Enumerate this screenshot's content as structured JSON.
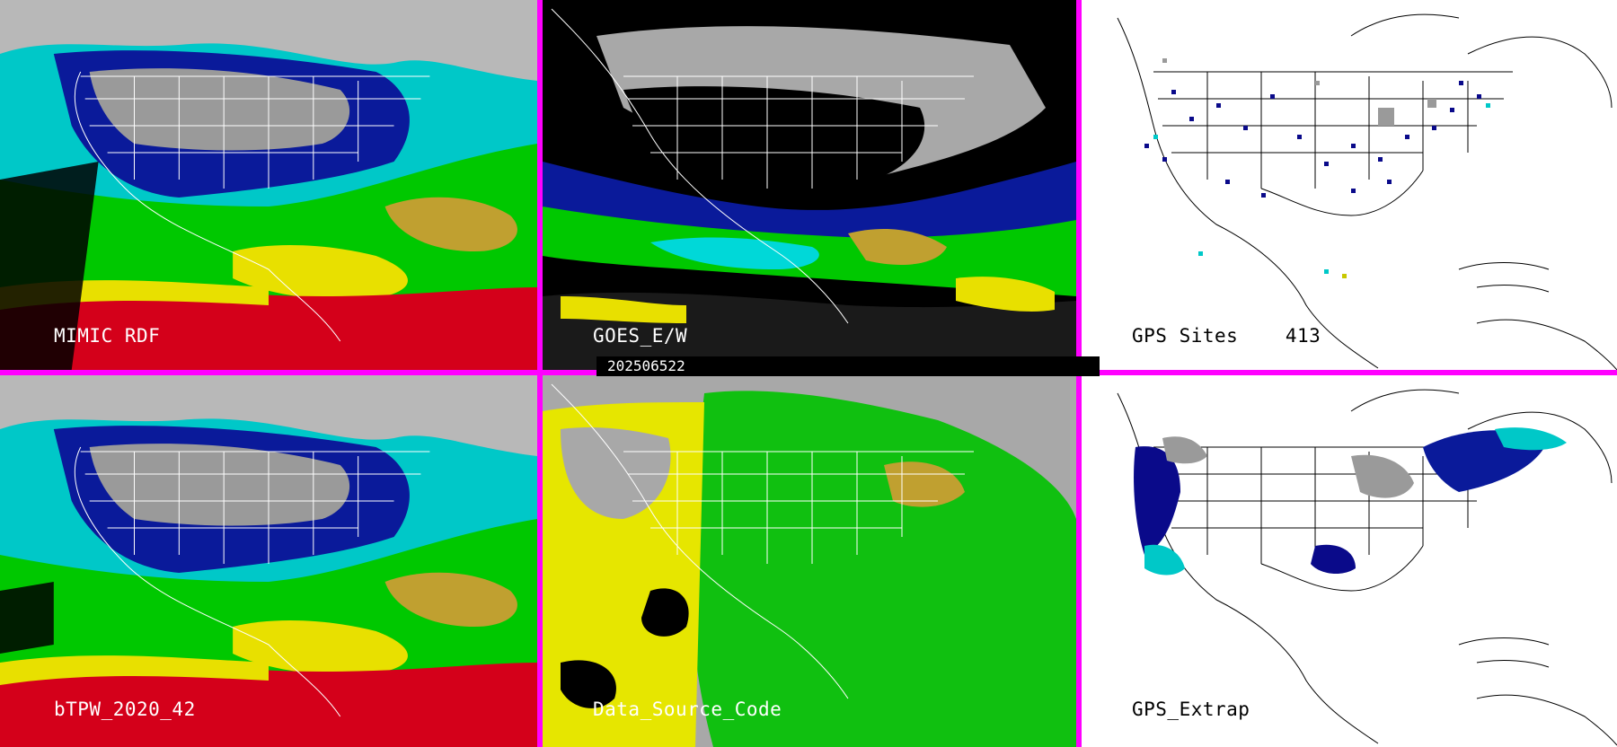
{
  "panels": [
    {
      "id": "p1",
      "label": "MIMIC RDF",
      "style": "tpw"
    },
    {
      "id": "p2",
      "label": "GOES_E/W",
      "style": "goes"
    },
    {
      "id": "p3",
      "label": "GPS Sites    413",
      "style": "gps"
    },
    {
      "id": "p4",
      "label": "bTPW_2020_42",
      "style": "tpw"
    },
    {
      "id": "p5",
      "label": "Data_Source_Code",
      "style": "source"
    },
    {
      "id": "p6",
      "label": "GPS_Extrap",
      "style": "extrap"
    }
  ],
  "timestamp": "202506522",
  "colors": {
    "separator": "#ff00ff",
    "tpw_red": "#d4001a",
    "tpw_yellow": "#e8e000",
    "tpw_green": "#00c800",
    "tpw_cyan": "#00d8d8",
    "tpw_blue": "#0a1a9a",
    "tpw_gray": "#9a9a9a",
    "source_green": "#10c010",
    "source_yellow": "#e6e600",
    "source_gray": "#a8a8a8",
    "gps_navy": "#0a0a8a"
  }
}
